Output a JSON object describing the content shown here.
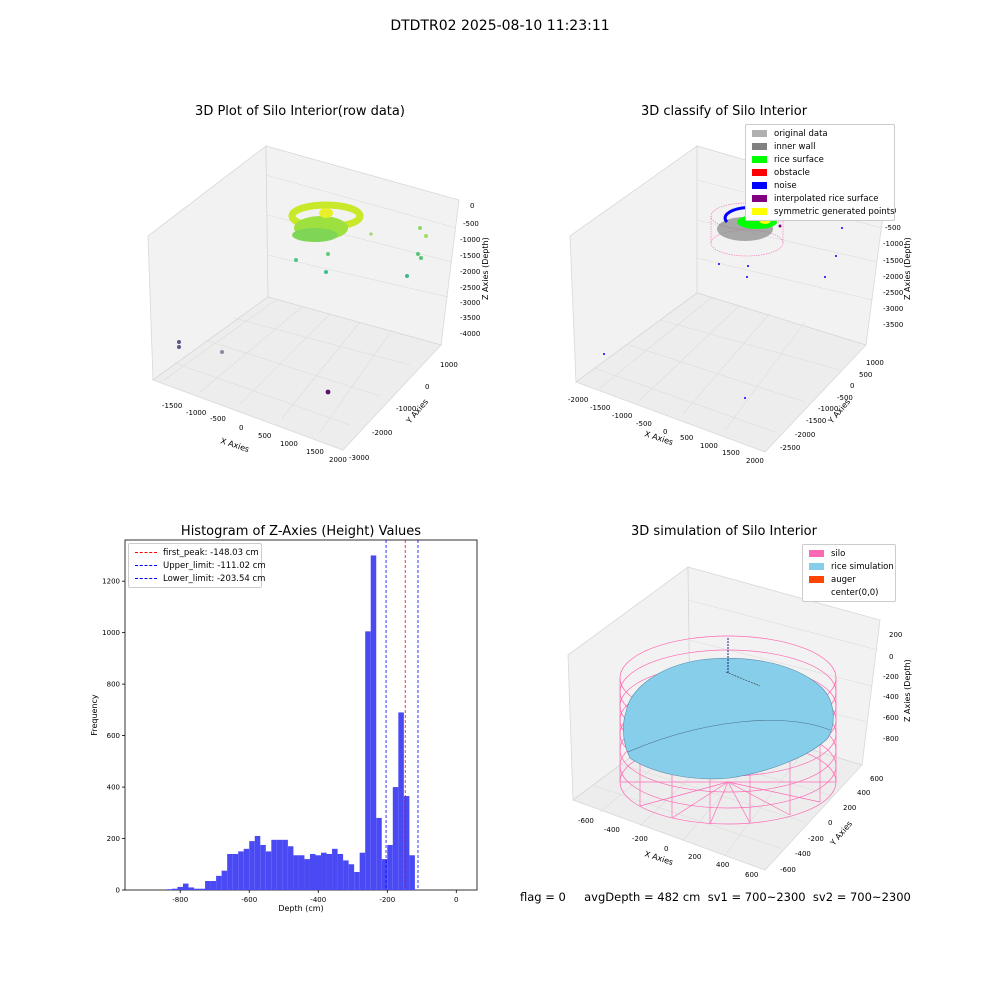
{
  "suptitle": "DTDTR02 2025-08-10 11:23:11",
  "panel1": {
    "title": "3D Plot of Silo Interior(row data)",
    "xlabel": "X Axies",
    "ylabel": "Y Axies",
    "zlabel": "Z Axies (Depth)",
    "xticks": [
      "-1500",
      "-1000",
      "-500",
      "0",
      "500",
      "1000",
      "1500",
      "2000"
    ],
    "yticks": [
      "1000",
      "0",
      "-1000",
      "-2000",
      "-3000"
    ],
    "zticks": [
      "0",
      "-500",
      "-1000",
      "-1500",
      "-2000",
      "-2500",
      "-3000",
      "-3500",
      "-4000"
    ]
  },
  "panel2": {
    "title": "3D classify of Silo Interior",
    "xlabel": "X Axies",
    "ylabel": "Y Axies",
    "zlabel": "Z Axies (Depth)",
    "xticks": [
      "-2000",
      "-1500",
      "-1000",
      "-500",
      "0",
      "500",
      "1000",
      "1500",
      "2000"
    ],
    "yticks": [
      "1000",
      "500",
      "0",
      "-500",
      "-1000",
      "-1500",
      "-2000",
      "-2500"
    ],
    "zticks": [
      "0",
      "-500",
      "-1000",
      "-1500",
      "-2000",
      "-2500",
      "-3000",
      "-3500"
    ],
    "legend": [
      {
        "label": "original data",
        "color": "#b0b0b0"
      },
      {
        "label": "inner wall",
        "color": "#808080"
      },
      {
        "label": "rice surface",
        "color": "#00ff00"
      },
      {
        "label": "obstacle",
        "color": "#ff0000"
      },
      {
        "label": "noise",
        "color": "#0000ff"
      },
      {
        "label": "interpolated rice surface",
        "color": "#800080"
      },
      {
        "label": "symmetric generated points",
        "color": "#ffff00"
      }
    ]
  },
  "panel3": {
    "title": "Histogram of Z-Axies (Height) Values",
    "xlabel": "Depth (cm)",
    "ylabel": "Frequency",
    "legend": [
      {
        "label": "first_peak: -148.03 cm",
        "color": "#ff0000"
      },
      {
        "label": "Upper_limit: -111.02 cm",
        "color": "#0000ff"
      },
      {
        "label": "Lower_limit: -203.54 cm",
        "color": "#0000ff"
      }
    ]
  },
  "panel4": {
    "title": "3D simulation of Silo Interior",
    "xlabel": "X Axies",
    "ylabel": "Y Axies",
    "zlabel": "Z Axies (Depth)",
    "xticks": [
      "-600",
      "-400",
      "-200",
      "0",
      "200",
      "400",
      "600"
    ],
    "yticks": [
      "600",
      "400",
      "200",
      "0",
      "-200",
      "-400",
      "-600"
    ],
    "zticks": [
      "200",
      "0",
      "-200",
      "-400",
      "-600",
      "-800"
    ],
    "legend": [
      {
        "label": "silo",
        "color": "#ff69b4"
      },
      {
        "label": "rice simulation",
        "color": "#87ceeb"
      },
      {
        "label": "auger",
        "color": "#ff4500"
      },
      {
        "label": "center(0,0)",
        "color": ""
      }
    ]
  },
  "footer": "flag = 0     avgDepth = 482 cm  sv1 = 700~2300  sv2 = 700~2300",
  "chart_data": [
    {
      "type": "histogram",
      "title": "Histogram of Z-Axies (Height) Values",
      "xlabel": "Depth (cm)",
      "ylabel": "Frequency",
      "xlim": [
        -960,
        60
      ],
      "ylim": [
        0,
        1360
      ],
      "xticks": [
        -800,
        -600,
        -400,
        -200,
        0
      ],
      "yticks": [
        0,
        200,
        400,
        600,
        800,
        1000,
        1200
      ],
      "bin_width": 16,
      "bin_starts": [
        -840,
        -824,
        -808,
        -792,
        -776,
        -760,
        -744,
        -728,
        -712,
        -696,
        -680,
        -664,
        -648,
        -632,
        -616,
        -600,
        -584,
        -568,
        -552,
        -536,
        -520,
        -504,
        -488,
        -472,
        -456,
        -440,
        -424,
        -408,
        -392,
        -376,
        -360,
        -344,
        -328,
        -312,
        -296,
        -280,
        -264,
        -248,
        -232,
        -216,
        -200,
        -184,
        -168,
        -152,
        -136,
        -120,
        -104,
        -88,
        -72,
        -56,
        -40,
        -24,
        -8
      ],
      "counts": [
        3,
        5,
        12,
        25,
        10,
        5,
        5,
        35,
        35,
        55,
        75,
        140,
        140,
        150,
        160,
        190,
        210,
        175,
        150,
        195,
        195,
        195,
        170,
        135,
        135,
        120,
        140,
        135,
        145,
        140,
        160,
        140,
        115,
        100,
        70,
        145,
        1005,
        1300,
        280,
        120,
        175,
        400,
        690,
        365,
        135,
        0,
        0,
        0,
        0,
        0,
        0,
        0,
        0
      ],
      "vlines": [
        {
          "label": "first_peak: -148.03 cm",
          "x": -148.03,
          "color": "#ff0000"
        },
        {
          "label": "Upper_limit: -111.02 cm",
          "x": -111.02,
          "color": "#0000ff"
        },
        {
          "label": "Lower_limit: -203.54 cm",
          "x": -203.54,
          "color": "#0000ff"
        }
      ],
      "bar_color": "#4a4af5"
    }
  ]
}
